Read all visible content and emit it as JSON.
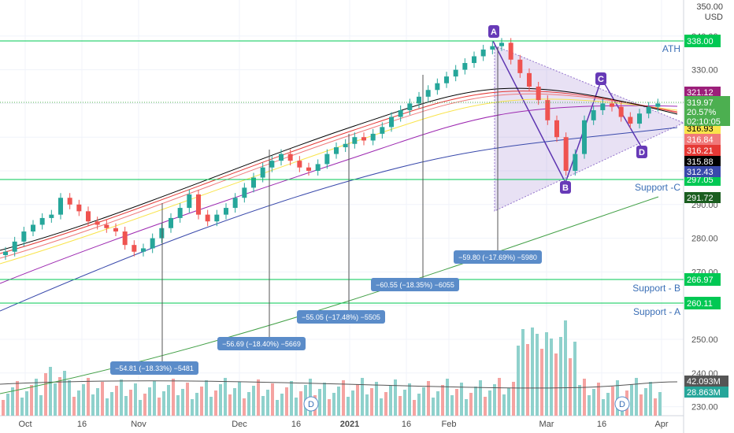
{
  "chart_data": {
    "type": "candlestick",
    "currency": "USD",
    "price_axis": {
      "ticks": [
        "350.00",
        "340.00",
        "330.00",
        "320.00",
        "310.00",
        "300.00",
        "290.00",
        "280.00",
        "270.00",
        "260.00",
        "250.00",
        "240.00",
        "230.00"
      ],
      "range": [
        226,
        352
      ]
    },
    "x_ticks": [
      "Oct",
      "16",
      "Nov",
      "16",
      "Dec",
      "16",
      "2021",
      "16",
      "Feb",
      "16",
      "Mar",
      "16",
      "Apr"
    ],
    "series": [
      {
        "name": "price",
        "values": [
          276,
          279,
          282,
          284,
          286,
          287,
          292,
          290,
          288,
          285,
          284,
          283,
          282,
          278,
          276,
          277,
          280,
          283,
          286,
          289,
          293,
          287,
          285,
          287,
          289,
          292,
          295,
          298,
          301,
          303,
          305,
          303,
          301,
          300,
          302,
          305,
          307,
          308,
          310,
          309,
          311,
          313,
          316,
          318,
          320,
          322,
          324,
          326,
          328,
          330,
          332,
          334,
          336,
          337,
          338,
          333,
          329,
          325,
          321,
          315,
          310,
          300,
          305,
          315,
          318,
          320,
          319,
          316,
          314,
          317,
          319,
          320
        ]
      }
    ],
    "levels": [
      {
        "label": "338.00",
        "color": "#00c853",
        "name": "ATH"
      },
      {
        "label": "297.05",
        "color": "#00c853",
        "name": "Support -C"
      },
      {
        "label": "266.97",
        "color": "#00c853",
        "name": "Support - B"
      },
      {
        "label": "260.11",
        "color": "#00c853",
        "name": "Support - A"
      }
    ],
    "price_labels": [
      {
        "text": "321.12",
        "color": "#9c1f7a"
      },
      {
        "text": "316.93",
        "color": "#f9e44b"
      },
      {
        "text": "316.84",
        "color": "#f0797a"
      },
      {
        "text": "316.21",
        "color": "#e53935"
      },
      {
        "text": "315.88",
        "color": "#000000"
      },
      {
        "text": "312.43",
        "color": "#3949ab"
      },
      {
        "text": "291.72",
        "color": "#1b5e20"
      }
    ],
    "last_price": {
      "price": "319.97",
      "change": "20.57%",
      "countdown": "02:10:05",
      "color": "#4caf50"
    },
    "drops": [
      {
        "text": "−54.81 (−18.33%) −5481"
      },
      {
        "text": "−56.69 (−18.40%) −5669"
      },
      {
        "text": "−55.05 (−17.48%) −5505"
      },
      {
        "text": "−60.55 (−18.35%) −6055"
      },
      {
        "text": "−59.80 (−17.69%) −5980"
      }
    ],
    "pattern_points": [
      "A",
      "B",
      "C",
      "D"
    ],
    "volume_labels": [
      {
        "text": "42.093M",
        "color": "#555555"
      },
      {
        "text": "28.863M",
        "color": "#26a69a"
      }
    ],
    "markers": [
      "D",
      "D"
    ]
  },
  "colors": {
    "up": "#26a69a",
    "down": "#ef5350",
    "accent": "#7e57c2"
  }
}
